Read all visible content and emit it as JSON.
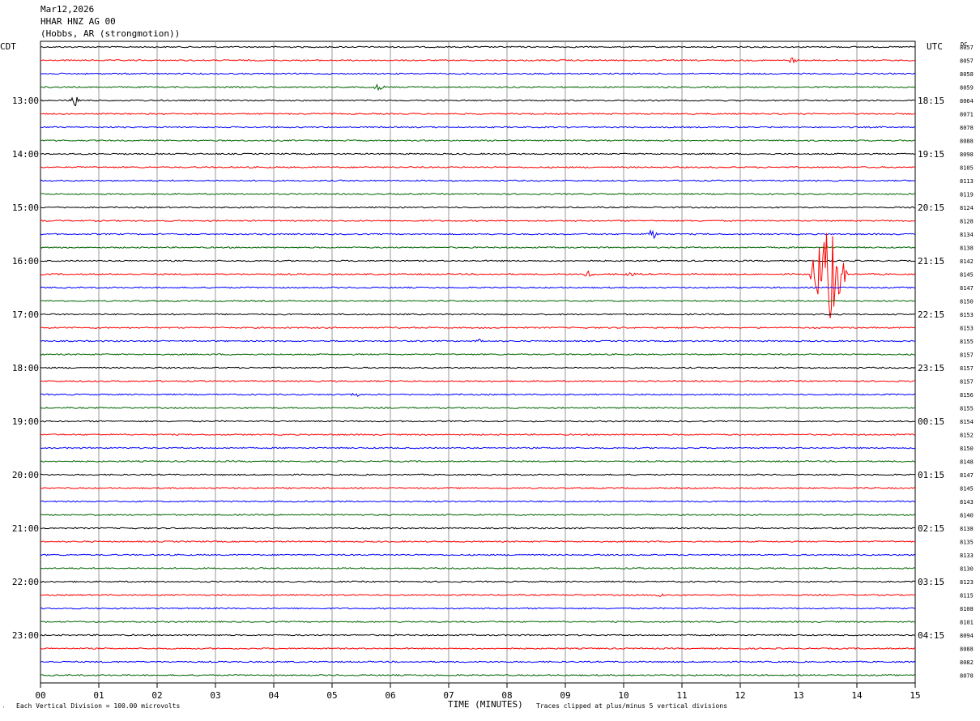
{
  "header": {
    "date": "Mar12,2026",
    "station": "HHAR HNZ AG 00",
    "location": "(Hobbs, AR (strongmotion))"
  },
  "left_zone_label": "CDT",
  "right_zone_label": "UTC",
  "dc_label": "DC",
  "footer": {
    "vertical_division": "Each Vertical Division =  100.00 microvolts",
    "xlabel": "TIME (MINUTES)",
    "clip_note": "Traces clipped at plus/minus 5 vertical divisions",
    "corner_mark": "′"
  },
  "colors": {
    "trace_cycle": [
      "#000000",
      "#ff0000",
      "#0000ff",
      "#006400"
    ],
    "grid": "#808080"
  },
  "chart_data": {
    "type": "line",
    "title": "HHAR HNZ AG 00",
    "xlabel": "TIME (MINUTES)",
    "xlim": [
      0,
      15
    ],
    "x_ticks": [
      "00",
      "01",
      "02",
      "03",
      "04",
      "05",
      "06",
      "07",
      "08",
      "09",
      "10",
      "11",
      "12",
      "13",
      "14",
      "15"
    ],
    "trace_count": 48,
    "trace_interval_minutes": 15,
    "left_hour_labels": [
      "13:00",
      "14:00",
      "15:00",
      "16:00",
      "17:00",
      "18:00",
      "19:00",
      "20:00",
      "21:00",
      "22:00",
      "23:00"
    ],
    "right_hour_labels": [
      "18:15",
      "19:15",
      "20:15",
      "21:15",
      "22:15",
      "23:15",
      "00:15",
      "01:15",
      "02:15",
      "03:15",
      "04:15"
    ],
    "first_labeled_trace_index": 4,
    "dc_offsets": [
      "8057",
      "8057",
      "8058",
      "8059",
      "8064",
      "8071",
      "8078",
      "8088",
      "8098",
      "8105",
      "8113",
      "8119",
      "8124",
      "8128",
      "8134",
      "8138",
      "8142",
      "8145",
      "8147",
      "8150",
      "8153",
      "8153",
      "8155",
      "8157",
      "8157",
      "8157",
      "8156",
      "8155",
      "8154",
      "8152",
      "8150",
      "8148",
      "8147",
      "8145",
      "8143",
      "8140",
      "8138",
      "8135",
      "8133",
      "8130",
      "8123",
      "8115",
      "8108",
      "8101",
      "8094",
      "8088",
      "8082",
      "8078"
    ],
    "events": [
      {
        "trace": 1,
        "minute": 12.9,
        "amplitude_divisions": 1
      },
      {
        "trace": 3,
        "minute": 5.8,
        "amplitude_divisions": 1
      },
      {
        "trace": 4,
        "minute": 0.6,
        "amplitude_divisions": 2
      },
      {
        "trace": 14,
        "minute": 10.5,
        "amplitude_divisions": 2
      },
      {
        "trace": 17,
        "minute": 9.4,
        "amplitude_divisions": 1
      },
      {
        "trace": 17,
        "minute": 10.1,
        "amplitude_divisions": 1
      },
      {
        "trace": 17,
        "minute": 13.5,
        "amplitude_divisions": 5
      },
      {
        "trace": 22,
        "minute": 7.5,
        "amplitude_divisions": 1
      },
      {
        "trace": 26,
        "minute": 5.4,
        "amplitude_divisions": 1
      },
      {
        "trace": 41,
        "minute": 10.6,
        "amplitude_divisions": 1
      }
    ]
  }
}
